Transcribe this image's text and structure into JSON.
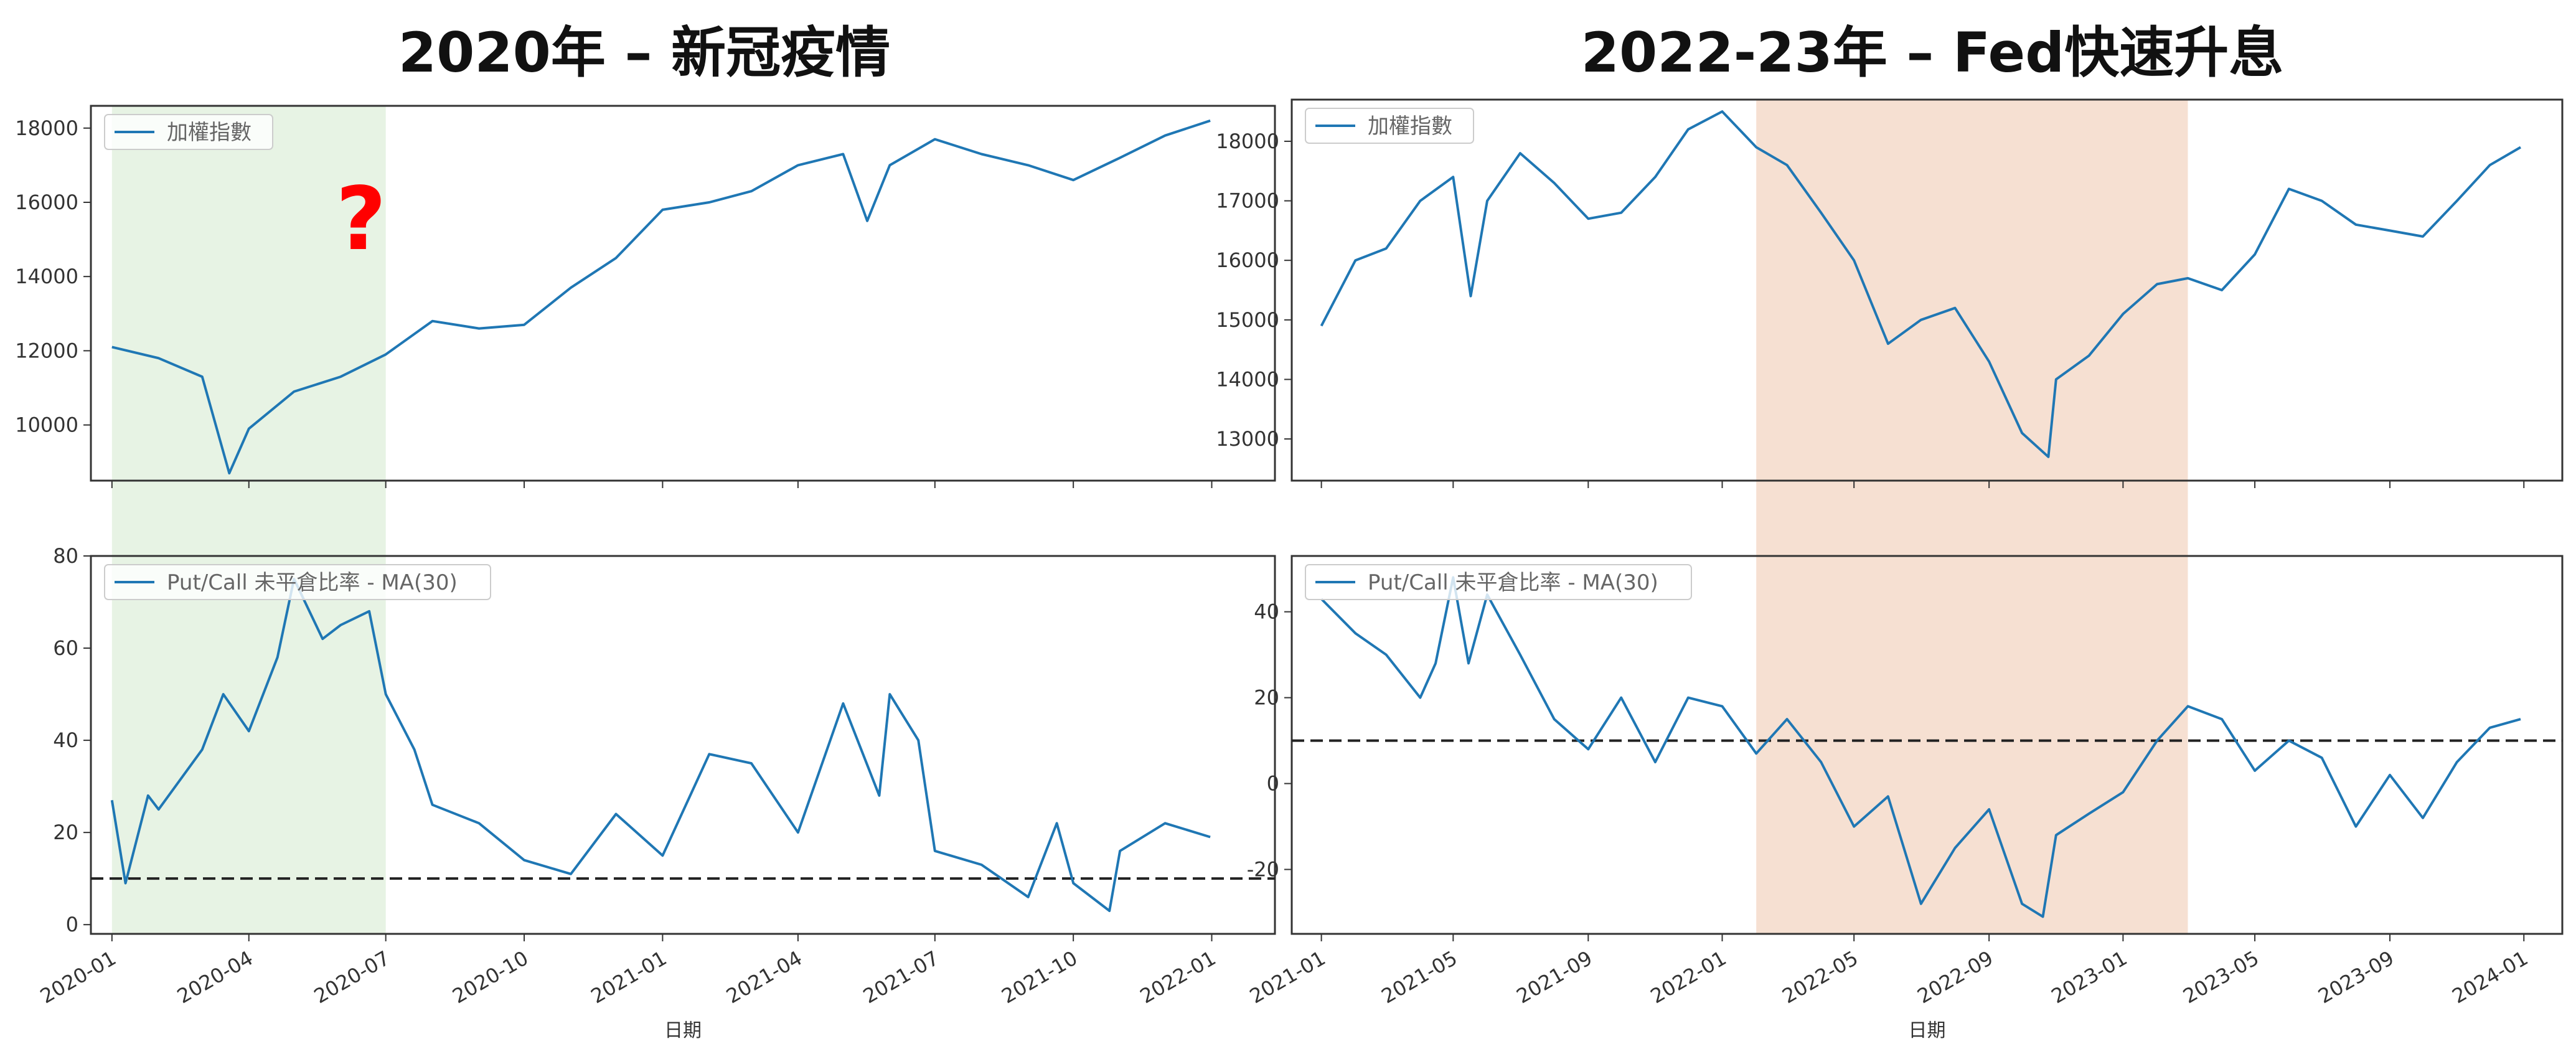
{
  "titles": {
    "left": "2020年 – 新冠疫情",
    "right": "2022-23年 – Fed快速升息"
  },
  "annotation": "?",
  "chart_data": [
    {
      "type": "line",
      "legend": "加權指數",
      "ylim": [
        8500,
        18600
      ],
      "yticks": [
        10000,
        12000,
        14000,
        16000,
        18000
      ],
      "x": [
        "2020-01",
        "2020-02",
        "2020-03",
        "2020-03-19",
        "2020-04",
        "2020-05",
        "2020-06",
        "2020-07",
        "2020-08",
        "2020-09",
        "2020-10",
        "2020-11",
        "2020-12",
        "2021-01",
        "2021-02",
        "2021-03",
        "2021-04",
        "2021-05",
        "2021-05-17",
        "2021-06",
        "2021-07",
        "2021-08",
        "2021-09",
        "2021-10",
        "2021-11",
        "2021-12",
        "2021-12-31"
      ],
      "values": [
        12100,
        11800,
        11300,
        8700,
        9900,
        10900,
        11300,
        11900,
        12800,
        12600,
        12700,
        13700,
        14500,
        15800,
        16000,
        16300,
        17000,
        17300,
        15500,
        17000,
        17700,
        17300,
        17000,
        16600,
        17200,
        17800,
        18200
      ],
      "highlight": {
        "from": "2020-01",
        "to": "2020-07",
        "color": "#e7f3e4"
      }
    },
    {
      "type": "line",
      "legend": "Put/Call 未平倉比率 - MA(30)",
      "ylim": [
        -2,
        80
      ],
      "yticks": [
        0,
        20,
        40,
        60,
        80
      ],
      "x": [
        "2020-01",
        "2020-01-10",
        "2020-01-25",
        "2020-02",
        "2020-03",
        "2020-03-15",
        "2020-04",
        "2020-04-20",
        "2020-05",
        "2020-05-20",
        "2020-06",
        "2020-06-20",
        "2020-07",
        "2020-07-20",
        "2020-08",
        "2020-09",
        "2020-10",
        "2020-11",
        "2020-12",
        "2021-01",
        "2021-02",
        "2021-03",
        "2021-04",
        "2021-05",
        "2021-05-25",
        "2021-06",
        "2021-06-20",
        "2021-07",
        "2021-08",
        "2021-09",
        "2021-09-20",
        "2021-10",
        "2021-10-25",
        "2021-11",
        "2021-12",
        "2021-12-31"
      ],
      "values": [
        27,
        9,
        28,
        25,
        38,
        50,
        42,
        58,
        75,
        62,
        65,
        68,
        50,
        38,
        26,
        22,
        14,
        11,
        24,
        15,
        37,
        35,
        20,
        48,
        28,
        50,
        40,
        16,
        13,
        6,
        22,
        9,
        3,
        16,
        22,
        19
      ],
      "reference_line": 10,
      "highlight": {
        "from": "2020-01",
        "to": "2020-07",
        "color": "#e7f3e4"
      }
    },
    {
      "type": "line",
      "legend": "加權指數",
      "ylim": [
        12300,
        18700
      ],
      "yticks": [
        13000,
        14000,
        15000,
        16000,
        17000,
        18000
      ],
      "x": [
        "2021-01",
        "2021-02",
        "2021-03",
        "2021-04",
        "2021-05",
        "2021-05-17",
        "2021-06",
        "2021-07",
        "2021-08",
        "2021-09",
        "2021-10",
        "2021-11",
        "2021-12",
        "2022-01",
        "2022-02",
        "2022-03",
        "2022-04",
        "2022-05",
        "2022-06",
        "2022-07",
        "2022-08",
        "2022-09",
        "2022-10",
        "2022-10-25",
        "2022-11",
        "2022-12",
        "2023-01",
        "2023-02",
        "2023-03",
        "2023-04",
        "2023-05",
        "2023-06",
        "2023-07",
        "2023-08",
        "2023-09",
        "2023-10",
        "2023-11",
        "2023-12",
        "2023-12-29"
      ],
      "values": [
        14900,
        16000,
        16200,
        17000,
        17400,
        15400,
        17000,
        17800,
        17300,
        16700,
        16800,
        17400,
        18200,
        18500,
        17900,
        17600,
        16800,
        16000,
        14600,
        15000,
        15200,
        14300,
        13100,
        12700,
        14000,
        14400,
        15100,
        15600,
        15700,
        15500,
        16100,
        17200,
        17000,
        16600,
        16500,
        16400,
        17000,
        17600,
        17900
      ],
      "highlight": {
        "from": "2022-02",
        "to": "2023-03",
        "color": "#f6e0d2"
      }
    },
    {
      "type": "line",
      "legend": "Put/Call 未平倉比率 - MA(30)",
      "ylim": [
        -35,
        53
      ],
      "yticks": [
        -20,
        0,
        20,
        40
      ],
      "x": [
        "2021-01",
        "2021-02",
        "2021-03",
        "2021-04",
        "2021-04-15",
        "2021-05",
        "2021-05-15",
        "2021-06",
        "2021-07",
        "2021-08",
        "2021-09",
        "2021-10",
        "2021-11",
        "2021-12",
        "2022-01",
        "2022-02",
        "2022-03",
        "2022-04",
        "2022-05",
        "2022-06",
        "2022-07",
        "2022-08",
        "2022-09",
        "2022-10",
        "2022-10-20",
        "2022-11",
        "2022-12",
        "2023-01",
        "2023-02",
        "2023-03",
        "2023-04",
        "2023-05",
        "2023-06",
        "2023-07",
        "2023-08",
        "2023-09",
        "2023-10",
        "2023-11",
        "2023-12",
        "2023-12-29"
      ],
      "values": [
        43,
        35,
        30,
        20,
        28,
        48,
        28,
        44,
        30,
        15,
        8,
        20,
        5,
        20,
        18,
        7,
        15,
        5,
        -10,
        -3,
        -28,
        -15,
        -6,
        -28,
        -31,
        -12,
        -7,
        -2,
        10,
        18,
        15,
        3,
        10,
        6,
        -10,
        2,
        -8,
        5,
        13,
        15
      ],
      "reference_line": 10,
      "highlight": {
        "from": "2022-02",
        "to": "2023-03",
        "color": "#f6e0d2"
      }
    }
  ],
  "x_axes": {
    "left": {
      "ticks": [
        "2020-01",
        "2020-04",
        "2020-07",
        "2020-10",
        "2021-01",
        "2021-04",
        "2021-07",
        "2021-10",
        "2022-01"
      ],
      "label": "日期"
    },
    "right": {
      "ticks": [
        "2021-01",
        "2021-05",
        "2021-09",
        "2022-01",
        "2022-05",
        "2022-09",
        "2023-01",
        "2023-05",
        "2023-09",
        "2024-01"
      ],
      "label": "日期"
    }
  },
  "colors": {
    "line": "#1f77b4",
    "reference": "#222222",
    "frame": "#333333"
  }
}
